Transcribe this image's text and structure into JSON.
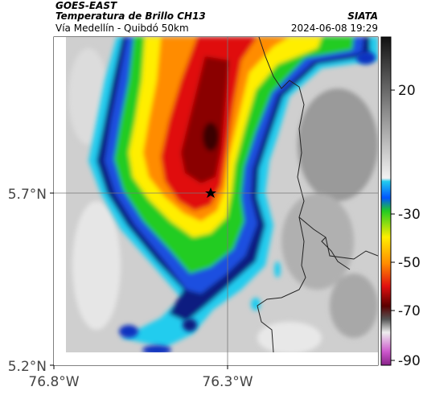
{
  "header": {
    "satellite": "GOES-EAST",
    "product": "Temperatura de Brillo CH13",
    "organization": "SIATA",
    "route": "Vía Medellín - Quibdó 50km",
    "timestamp": "2024-06-08 19:29"
  },
  "map": {
    "lat_ticks": [
      "5.7°N",
      "5.2°N"
    ],
    "lon_ticks": [
      "76.8°W",
      "76.3°W"
    ],
    "marker_icon": "star-icon"
  },
  "colorbar": {
    "ticks": [
      "20",
      "-30",
      "-50",
      "-70",
      "-90"
    ]
  },
  "colors": {
    "cold_core": "#7a0000",
    "red": "#e01010",
    "orange": "#ff8c00",
    "yellow": "#ffee00",
    "green": "#22cc22",
    "cyan": "#22ccee",
    "blue": "#1030c0",
    "navy": "#001060",
    "warm_gray": "#c8c8c8"
  }
}
